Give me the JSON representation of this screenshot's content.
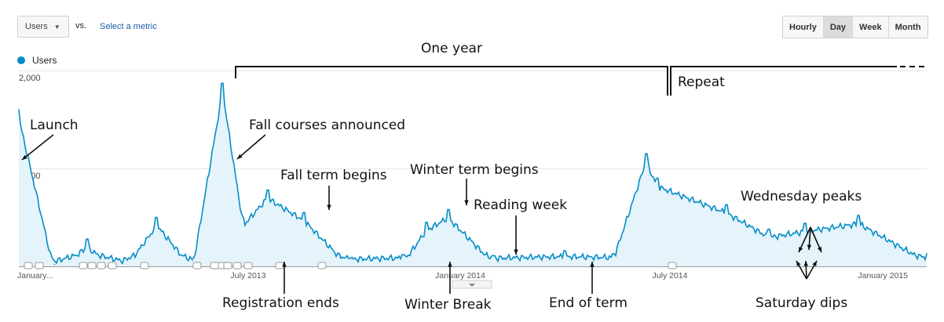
{
  "toolbar": {
    "metric_select": "Users",
    "vs_label": "vs.",
    "select_metric_link": "Select a metric",
    "granularity": [
      "Hourly",
      "Day",
      "Week",
      "Month"
    ],
    "active_granularity": "Day"
  },
  "chart_data": {
    "type": "line",
    "series": [
      {
        "name": "Users",
        "color": "#058dc7",
        "x": [
          "2013-01-01",
          "2013-02-01",
          "2013-03-01",
          "2013-04-01",
          "2013-05-01",
          "2013-06-01",
          "2013-06-27",
          "2013-07-15",
          "2013-08-05",
          "2013-09-06",
          "2013-10-15",
          "2013-12-01",
          "2013-12-21",
          "2014-01-09",
          "2014-02-18",
          "2014-04-20",
          "2014-06-01",
          "2014-06-30",
          "2014-07-10",
          "2014-09-08",
          "2014-10-15",
          "2014-11-15",
          "2015-01-01",
          "2015-03-01"
        ],
        "values": [
          1600,
          20,
          280,
          30,
          500,
          60,
          1870,
          500,
          780,
          550,
          80,
          120,
          450,
          580,
          110,
          160,
          130,
          1150,
          900,
          630,
          380,
          440,
          520,
          130
        ]
      }
    ],
    "ylim": [
      0,
      2000
    ],
    "y_ticks": [
      "2,000",
      "1,000"
    ],
    "x_ticks": [
      "January...",
      "July 2013",
      "January 2014",
      "July 2014",
      "January 2015"
    ],
    "fill": "area",
    "legend": "top-left",
    "annotations": {
      "one_year": "One year",
      "repeat": "Repeat",
      "launch": "Launch",
      "fall_courses_announced": "Fall courses announced",
      "fall_term_begins": "Fall term begins",
      "winter_term_begins": "Winter term begins",
      "reading_week": "Reading week",
      "wednesday_peaks": "Wednesday peaks",
      "registration_ends": "Registration ends",
      "winter_break": "Winter Break",
      "end_of_term": "End of term",
      "saturday_dips": "Saturday dips"
    }
  }
}
